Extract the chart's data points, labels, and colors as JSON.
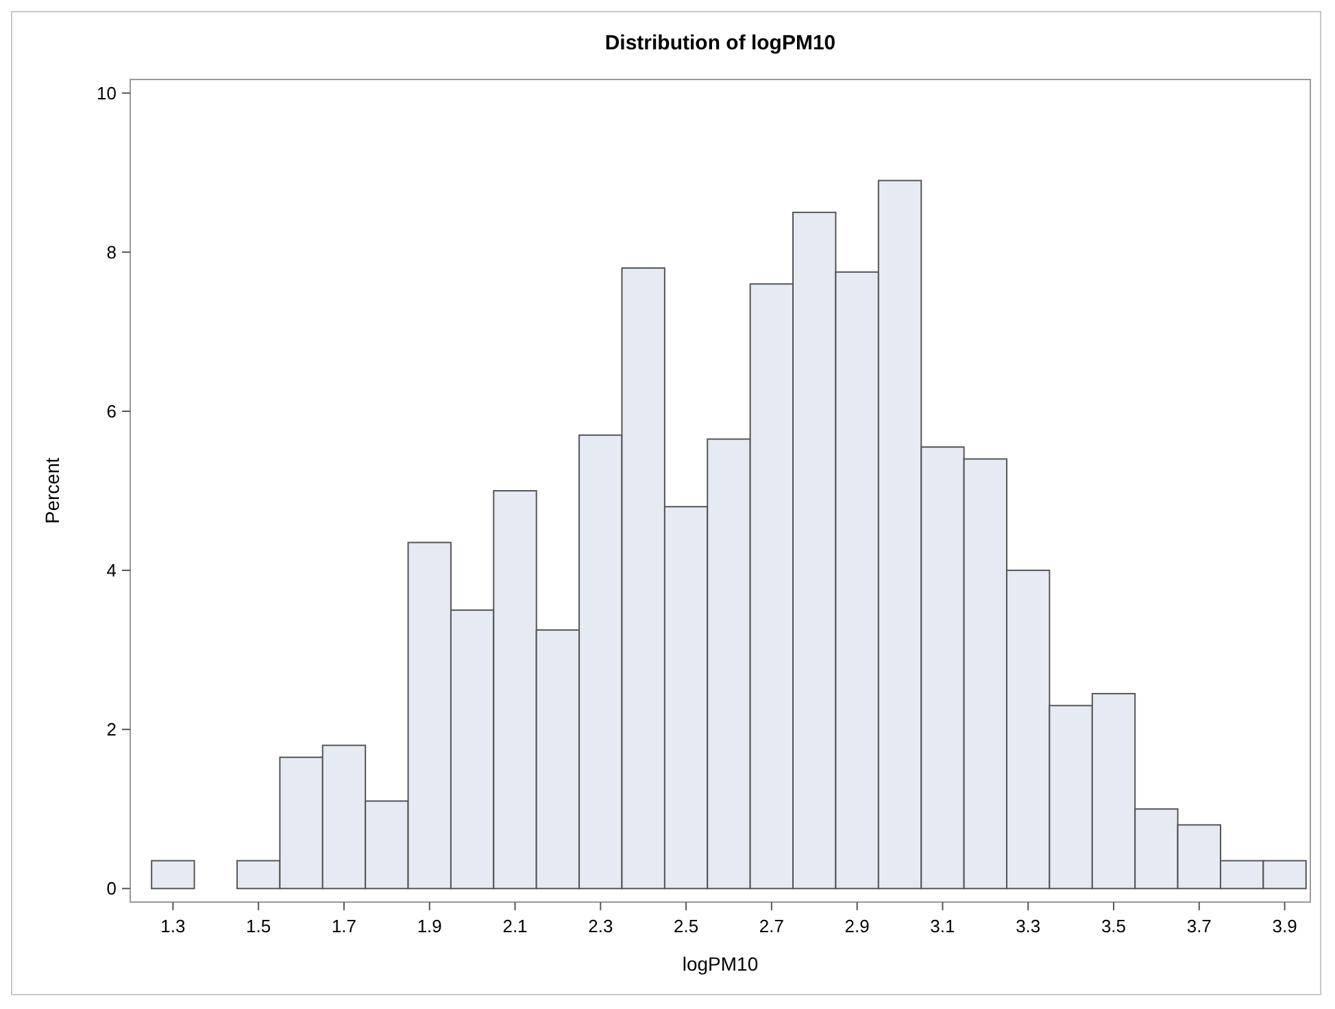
{
  "chart_data": {
    "type": "histogram",
    "title": "Distribution of logPM10",
    "xlabel": "logPM10",
    "ylabel": "Percent",
    "bins": [
      1.25,
      1.35,
      1.45,
      1.55,
      1.65,
      1.75,
      1.85,
      1.95,
      2.05,
      2.15,
      2.25,
      2.35,
      2.45,
      2.55,
      2.65,
      2.75,
      2.85,
      2.95,
      3.05,
      3.15,
      3.25,
      3.35,
      3.45,
      3.55,
      3.65,
      3.75,
      3.85,
      3.95
    ],
    "values": [
      0.35,
      0,
      0.35,
      1.65,
      1.8,
      1.1,
      4.35,
      3.5,
      5.0,
      3.25,
      5.7,
      7.8,
      4.8,
      5.65,
      7.6,
      8.5,
      7.75,
      8.9,
      5.55,
      5.4,
      4.0,
      2.3,
      2.45,
      1.0,
      0.8,
      0.35,
      0.35
    ],
    "color": "#e6eaf2",
    "xlim": [
      1.2,
      3.96
    ],
    "xticks": [
      1.3,
      1.5,
      1.7,
      1.9,
      2.1,
      2.3,
      2.5,
      2.7,
      2.9,
      3.1,
      3.3,
      3.5,
      3.7,
      3.9
    ],
    "ylim": [
      -0.17,
      10.17
    ],
    "yticks": [
      0,
      2,
      4,
      6,
      8,
      10
    ]
  }
}
